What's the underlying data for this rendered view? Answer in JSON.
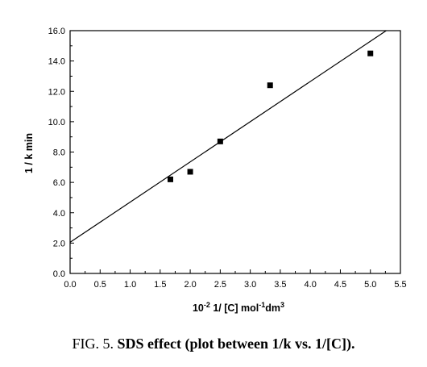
{
  "caption": {
    "prefix": "FIG. 5.",
    "title": "SDS effect (plot between 1/k vs. 1/[C])."
  },
  "chart_data": {
    "type": "scatter",
    "ylabel": "1 / k min",
    "xlabel": {
      "pre": "10",
      "pre_sup": "-2",
      "mid": " 1/ [C] mol",
      "mid_sup": "-1",
      "post": "dm",
      "post_sup": "3"
    },
    "xlim": [
      0.0,
      5.5
    ],
    "ylim": [
      0.0,
      16.0
    ],
    "xticks": [
      "0.0",
      "0.5",
      "1.0",
      "1.5",
      "2.0",
      "2.5",
      "3.0",
      "3.5",
      "4.0",
      "4.5",
      "5.0",
      "5.5"
    ],
    "yticks": [
      "0.0",
      "2.0",
      "4.0",
      "6.0",
      "8.0",
      "10.0",
      "12.0",
      "14.0",
      "16.0"
    ],
    "points": [
      {
        "x": 1.67,
        "y": 6.2
      },
      {
        "x": 2.0,
        "y": 6.7
      },
      {
        "x": 2.5,
        "y": 8.7
      },
      {
        "x": 3.33,
        "y": 12.4
      },
      {
        "x": 5.0,
        "y": 14.5
      }
    ],
    "fit_line": {
      "slope": 2.65,
      "intercept": 2.05
    },
    "grid": false,
    "legend": "none"
  }
}
